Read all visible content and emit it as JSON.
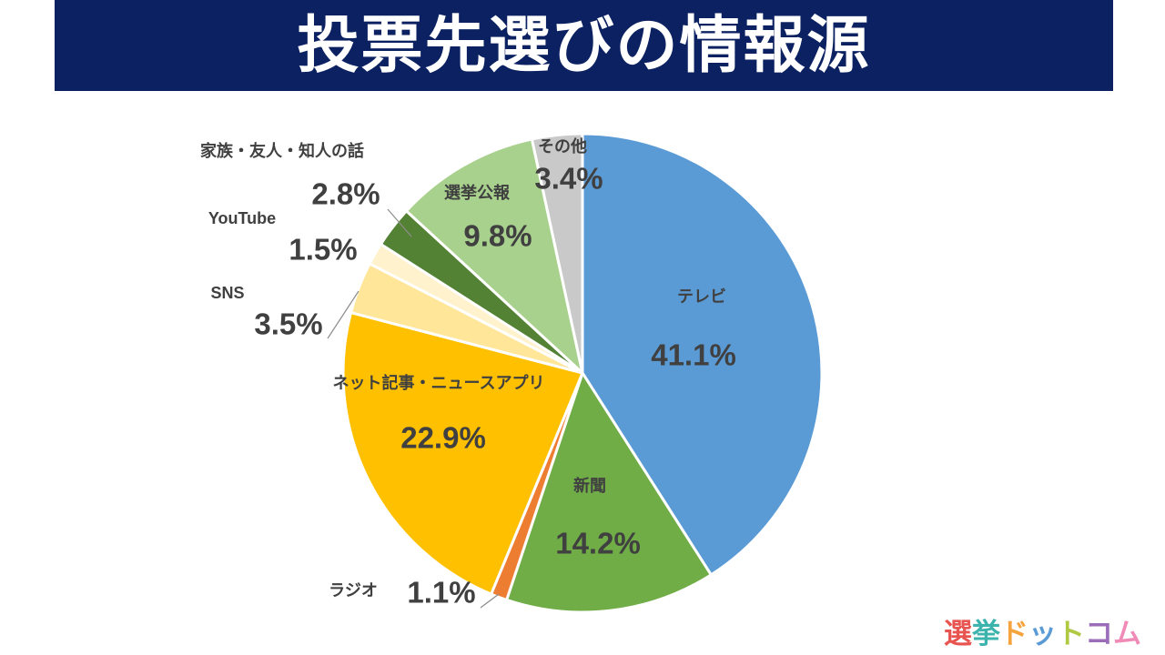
{
  "header": {
    "title": "投票先選びの情報源",
    "background_color": "#0b2161",
    "text_color": "#ffffff"
  },
  "chart_data": {
    "type": "pie",
    "title": "投票先選びの情報源",
    "direction": "clockwise",
    "start_angle_deg": 0,
    "legend": "none (labels placed on/around slices)",
    "label_text_color": "#404040",
    "slice_border_color": "#ffffff",
    "slices": [
      {
        "id": "tv",
        "label": "テレビ",
        "value": 41.1,
        "display": "41.1%",
        "color": "#5b9bd5"
      },
      {
        "id": "newspaper",
        "label": "新聞",
        "value": 14.2,
        "display": "14.2%",
        "color": "#70ad47"
      },
      {
        "id": "radio",
        "label": "ラジオ",
        "value": 1.1,
        "display": "1.1%",
        "color": "#ed7d31"
      },
      {
        "id": "net-news",
        "label": "ネット記事・ニュースアプリ",
        "value": 22.9,
        "display": "22.9%",
        "color": "#ffc000"
      },
      {
        "id": "sns",
        "label": "SNS",
        "value": 3.5,
        "display": "3.5%",
        "color": "#ffe699"
      },
      {
        "id": "youtube",
        "label": "YouTube",
        "value": 1.5,
        "display": "1.5%",
        "color": "#fff2cc"
      },
      {
        "id": "family",
        "label": "家族・友人・知人の話",
        "value": 2.8,
        "display": "2.8%",
        "color": "#548235"
      },
      {
        "id": "bulletin",
        "label": "選挙公報",
        "value": 9.8,
        "display": "9.8%",
        "color": "#a9d18e"
      },
      {
        "id": "other",
        "label": "その他",
        "value": 3.4,
        "display": "3.4%",
        "color": "#c9c9c9"
      }
    ]
  },
  "footer": {
    "logo_text": "選挙ドットコム",
    "logo_chars": [
      {
        "char": "選",
        "color": "#e85450"
      },
      {
        "char": "挙",
        "color": "#3cb3ac"
      },
      {
        "char": "ド",
        "color": "#f5a33d"
      },
      {
        "char": "ッ",
        "color": "#5b9bd5"
      },
      {
        "char": "ト",
        "color": "#b0c943"
      },
      {
        "char": "コ",
        "color": "#9b6cb8"
      },
      {
        "char": "ム",
        "color": "#f08bb8"
      }
    ]
  }
}
